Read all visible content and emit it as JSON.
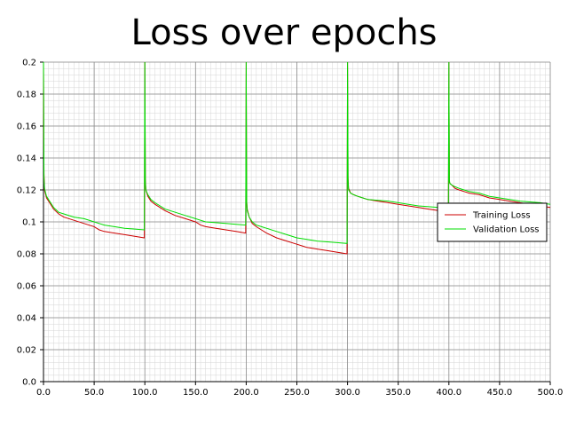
{
  "chart_data": {
    "type": "line",
    "title": "Loss over epochs",
    "xlabel": "",
    "ylabel": "",
    "xlim": [
      0,
      500
    ],
    "ylim": [
      0,
      0.2
    ],
    "x_ticks": [
      "0.0",
      "50.0",
      "100.0",
      "150.0",
      "200.0",
      "250.0",
      "300.0",
      "350.0",
      "400.0",
      "450.0",
      "500.0"
    ],
    "y_ticks": [
      "0.0",
      "0.02",
      "0.04",
      "0.06",
      "0.08",
      "0.1",
      "0.12",
      "0.14",
      "0.16",
      "0.18",
      "0.2"
    ],
    "grid": true,
    "minor_grid": true,
    "legend_position": "right",
    "series": [
      {
        "name": "Training Loss",
        "color": "#cc0000",
        "x": [
          0,
          0.5,
          1,
          3,
          6,
          10,
          15,
          20,
          30,
          40,
          50,
          55,
          60,
          70,
          80,
          90,
          99.5,
          100,
          100.5,
          101,
          103,
          106,
          110,
          115,
          120,
          130,
          140,
          150,
          155,
          160,
          170,
          180,
          190,
          199.5,
          200,
          200.5,
          201,
          203,
          206,
          210,
          215,
          220,
          230,
          240,
          250,
          255,
          260,
          270,
          280,
          290,
          299.5,
          300,
          300.5,
          301,
          303,
          306,
          310,
          315,
          320,
          330,
          340,
          350,
          360,
          370,
          380,
          390,
          399.5,
          400,
          400.5,
          401,
          403,
          406,
          410,
          415,
          420,
          430,
          440,
          450,
          460,
          470,
          480,
          490,
          500
        ],
        "y": [
          0.2,
          0.13,
          0.12,
          0.115,
          0.112,
          0.108,
          0.105,
          0.103,
          0.101,
          0.099,
          0.097,
          0.095,
          0.094,
          0.093,
          0.092,
          0.091,
          0.09,
          0.2,
          0.127,
          0.12,
          0.116,
          0.113,
          0.111,
          0.109,
          0.107,
          0.104,
          0.102,
          0.1,
          0.098,
          0.097,
          0.096,
          0.095,
          0.094,
          0.093,
          0.2,
          0.113,
          0.108,
          0.103,
          0.099,
          0.097,
          0.095,
          0.093,
          0.09,
          0.088,
          0.086,
          0.085,
          0.084,
          0.083,
          0.082,
          0.081,
          0.08,
          0.2,
          0.128,
          0.121,
          0.118,
          0.117,
          0.116,
          0.115,
          0.114,
          0.113,
          0.112,
          0.111,
          0.11,
          0.109,
          0.108,
          0.107,
          0.106,
          0.2,
          0.125,
          0.124,
          0.123,
          0.121,
          0.12,
          0.119,
          0.118,
          0.117,
          0.115,
          0.114,
          0.113,
          0.112,
          0.111,
          0.11,
          0.109
        ]
      },
      {
        "name": "Validation Loss",
        "color": "#00dd00",
        "x": [
          0,
          0.5,
          1,
          3,
          6,
          10,
          15,
          20,
          30,
          40,
          50,
          55,
          60,
          70,
          80,
          90,
          99.5,
          100,
          100.5,
          101,
          103,
          106,
          110,
          115,
          120,
          130,
          140,
          150,
          155,
          160,
          170,
          180,
          190,
          199.5,
          200,
          200.5,
          201,
          203,
          206,
          210,
          215,
          220,
          230,
          240,
          250,
          255,
          260,
          270,
          280,
          290,
          299.5,
          300,
          300.5,
          301,
          303,
          306,
          310,
          315,
          320,
          330,
          340,
          350,
          360,
          370,
          380,
          390,
          399.5,
          400,
          400.5,
          401,
          403,
          406,
          410,
          415,
          420,
          430,
          440,
          450,
          460,
          470,
          480,
          490,
          500
        ],
        "y": [
          0.2,
          0.128,
          0.121,
          0.116,
          0.113,
          0.109,
          0.106,
          0.105,
          0.103,
          0.102,
          0.1,
          0.099,
          0.098,
          0.097,
          0.096,
          0.0955,
          0.095,
          0.2,
          0.125,
          0.12,
          0.117,
          0.114,
          0.112,
          0.11,
          0.108,
          0.106,
          0.104,
          0.102,
          0.101,
          0.1,
          0.0995,
          0.099,
          0.0985,
          0.098,
          0.2,
          0.112,
          0.107,
          0.103,
          0.1,
          0.098,
          0.097,
          0.096,
          0.094,
          0.092,
          0.09,
          0.0895,
          0.089,
          0.088,
          0.0875,
          0.087,
          0.0865,
          0.2,
          0.126,
          0.12,
          0.118,
          0.117,
          0.116,
          0.115,
          0.114,
          0.1135,
          0.113,
          0.112,
          0.111,
          0.11,
          0.1095,
          0.109,
          0.108,
          0.2,
          0.126,
          0.124,
          0.123,
          0.122,
          0.121,
          0.12,
          0.119,
          0.118,
          0.116,
          0.115,
          0.114,
          0.113,
          0.1125,
          0.112,
          0.111
        ]
      }
    ]
  }
}
